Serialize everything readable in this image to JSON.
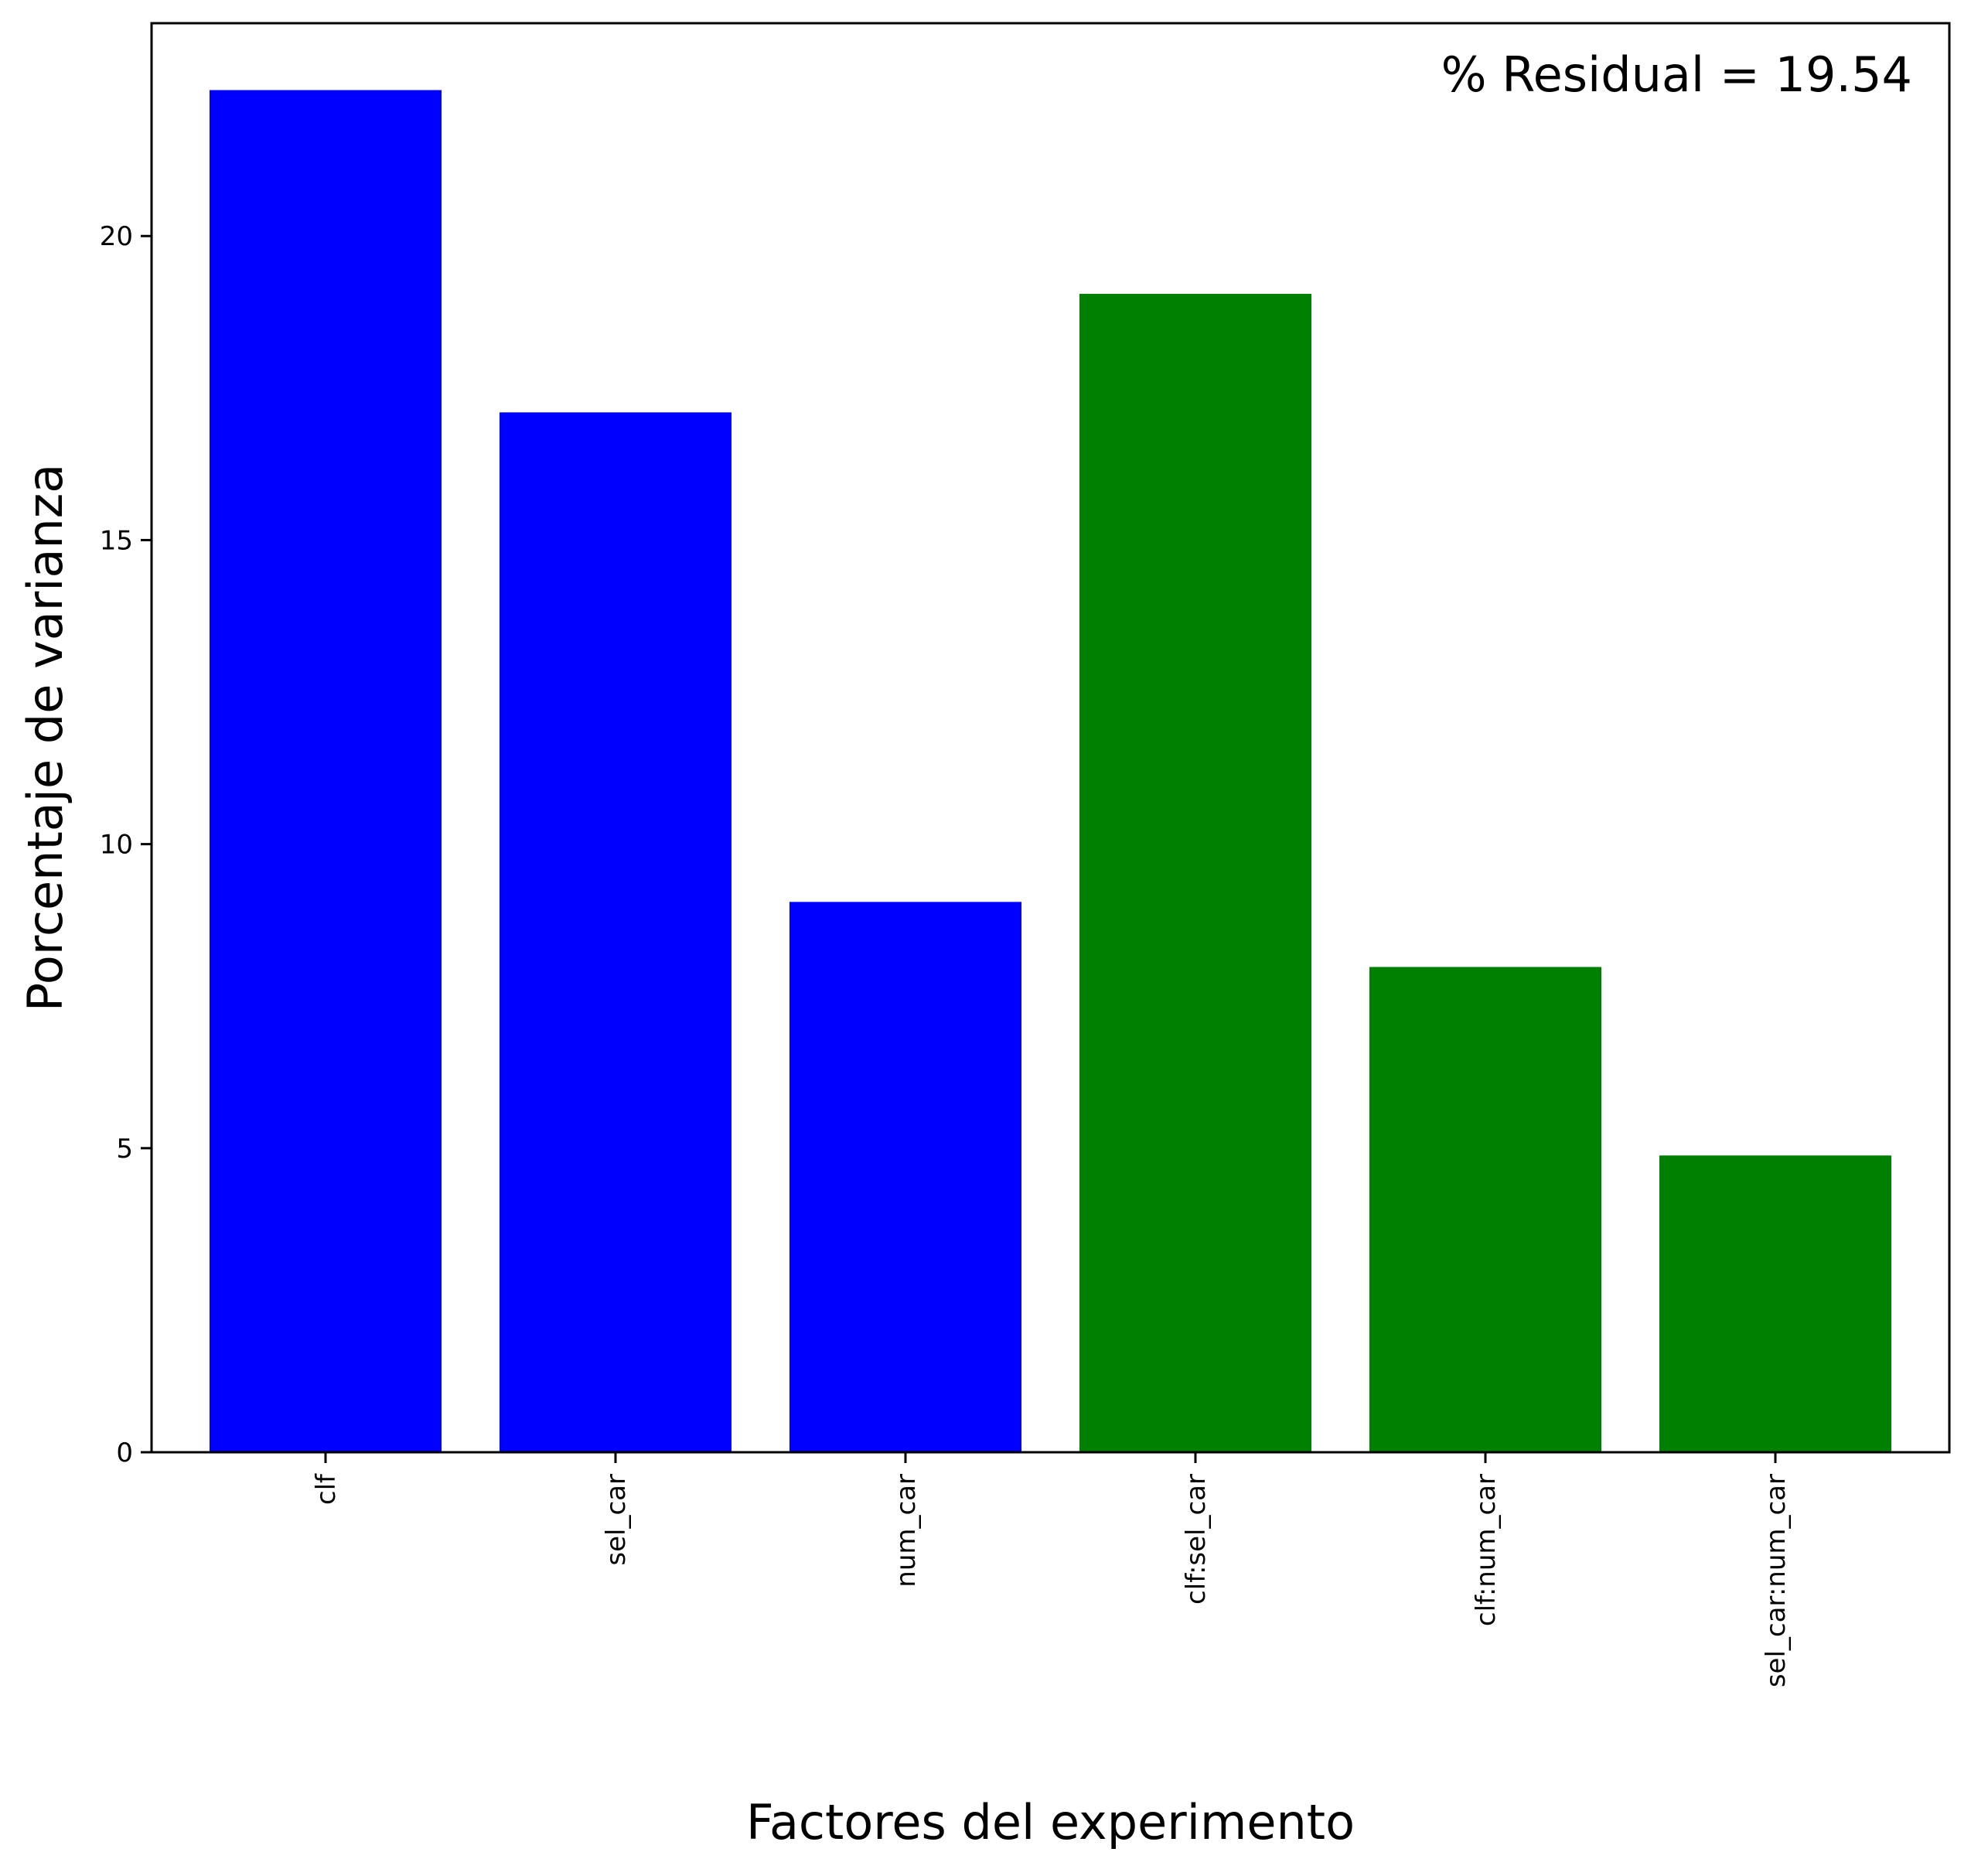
{
  "chart_data": {
    "type": "bar",
    "categories": [
      "clf",
      "sel_car",
      "num_car",
      "clf:sel_car",
      "clf:num_car",
      "sel_car:num_car"
    ],
    "values": [
      22.4,
      17.1,
      9.05,
      19.05,
      7.98,
      4.88
    ],
    "bar_colors": [
      "#0000ff",
      "#0000ff",
      "#0000ff",
      "#008000",
      "#008000",
      "#008000"
    ],
    "xlabel": "Factores del experimento",
    "ylabel": "Porcentaje de varianza",
    "ylim": [
      0,
      23.5
    ],
    "yticks": [
      0,
      5,
      10,
      15,
      20
    ],
    "annotation": "% Residual = 19.54",
    "annotation_position": "top-right",
    "grid": false,
    "legend": "none"
  }
}
